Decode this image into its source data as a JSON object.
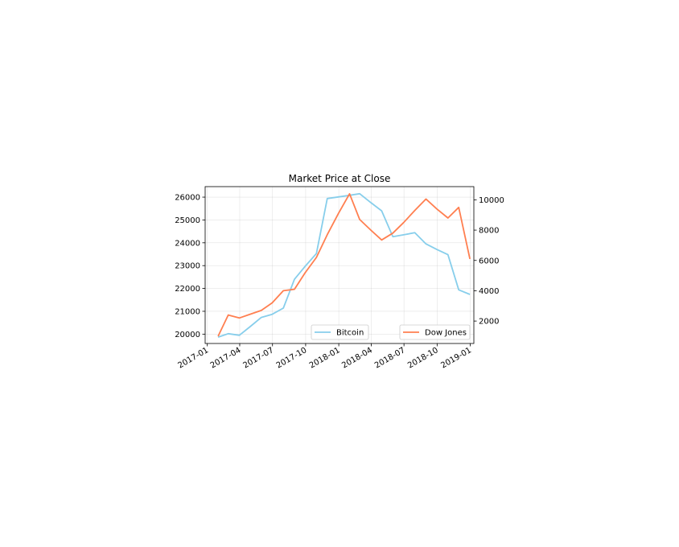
{
  "chart_data": {
    "type": "line",
    "title": "Market Price at Close",
    "xlabel": "",
    "ylabel_left": "",
    "ylabel_right": "",
    "x": [
      "2017-01-31",
      "2017-02-28",
      "2017-03-31",
      "2017-04-30",
      "2017-05-31",
      "2017-06-30",
      "2017-07-31",
      "2017-08-31",
      "2017-09-30",
      "2017-10-31",
      "2017-11-30",
      "2017-12-31",
      "2018-01-31",
      "2018-02-28",
      "2018-03-31",
      "2018-04-30",
      "2018-05-31",
      "2018-06-30",
      "2018-07-31",
      "2018-08-31",
      "2018-09-30",
      "2018-10-31",
      "2018-11-30",
      "2018-12-31"
    ],
    "x_ticks": [
      "2017-01",
      "2017-04",
      "2017-07",
      "2017-10",
      "2018-01",
      "2018-04",
      "2018-07",
      "2018-10",
      "2019-01"
    ],
    "x_tick_dates": [
      "2017-01-01",
      "2017-04-01",
      "2017-07-01",
      "2017-10-01",
      "2018-01-01",
      "2018-04-01",
      "2018-07-01",
      "2018-10-01",
      "2019-01-01"
    ],
    "xlim": [
      "2016-12-26",
      "2019-01-11"
    ],
    "series": [
      {
        "name": "Bitcoin",
        "axis": "left",
        "color": "#87ceeb",
        "values": [
          19870,
          20020,
          19950,
          20330,
          20730,
          20870,
          21140,
          22400,
          22980,
          23530,
          25940,
          26010,
          26080,
          26150,
          25760,
          25400,
          24270,
          24350,
          24440,
          23950,
          23710,
          23480,
          21940,
          21740
        ]
      },
      {
        "name": "Dow Jones",
        "axis": "right",
        "color": "#ff7f50",
        "values": [
          1000,
          2400,
          2200,
          2450,
          2700,
          3200,
          4000,
          4100,
          5200,
          6200,
          7700,
          9100,
          10400,
          8700,
          8000,
          7350,
          7800,
          8500,
          9300,
          10050,
          9400,
          8800,
          9500,
          6100
        ]
      }
    ],
    "y_left": {
      "ticks": [
        20000,
        21000,
        22000,
        23000,
        24000,
        25000,
        26000
      ],
      "lim": [
        19590,
        26460
      ]
    },
    "y_right": {
      "ticks": [
        2000,
        4000,
        6000,
        8000,
        10000
      ],
      "lim": [
        520,
        10870
      ]
    },
    "grid": true,
    "legend_left": "lower center",
    "legend_right": "lower right"
  }
}
